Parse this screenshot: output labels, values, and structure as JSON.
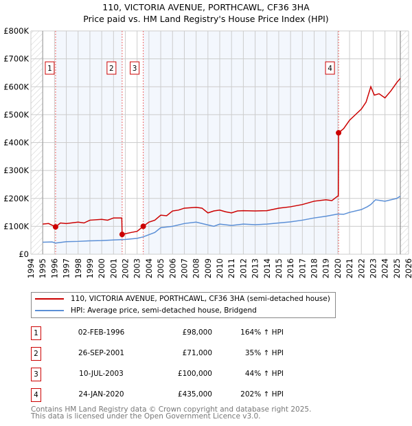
{
  "chart_data": {
    "type": "line",
    "title": "110, VICTORIA AVENUE, PORTHCAWL, CF36 3HA",
    "subtitle": "Price paid vs. HM Land Registry's House Price Index (HPI)",
    "xlim": [
      1994,
      2026
    ],
    "ylim": [
      0,
      800000
    ],
    "x_ticks": [
      "1994",
      "1995",
      "1996",
      "1997",
      "1998",
      "1999",
      "2000",
      "2001",
      "2002",
      "2003",
      "2004",
      "2005",
      "2006",
      "2007",
      "2008",
      "2009",
      "2010",
      "2011",
      "2012",
      "2013",
      "2014",
      "2015",
      "2016",
      "2017",
      "2018",
      "2019",
      "2020",
      "2021",
      "2022",
      "2023",
      "2024",
      "2025",
      "2026"
    ],
    "y_ticks": [
      {
        "value": 0,
        "label": "£0"
      },
      {
        "value": 100000,
        "label": "£100K"
      },
      {
        "value": 200000,
        "label": "£200K"
      },
      {
        "value": 300000,
        "label": "£300K"
      },
      {
        "value": 400000,
        "label": "£400K"
      },
      {
        "value": 500000,
        "label": "£500K"
      },
      {
        "value": 600000,
        "label": "£600K"
      },
      {
        "value": 700000,
        "label": "£700K"
      },
      {
        "value": 800000,
        "label": "£800K"
      }
    ],
    "grid": true,
    "data_range": [
      1995,
      2025.3
    ],
    "series": [
      {
        "name": "110, VICTORIA AVENUE, PORTHCAWL, CF36 3HA (semi-detached house)",
        "color": "#cc0000",
        "x": [
          1995,
          1995.5,
          1996.09,
          1996.5,
          1997,
          1998,
          1998.5,
          1999,
          2000,
          2000.5,
          2001,
          2001.7,
          2001.73,
          2002.5,
          2003,
          2003.52,
          2004,
          2004.5,
          2005,
          2005.5,
          2006,
          2006.5,
          2007,
          2008,
          2008.5,
          2009,
          2009.5,
          2010,
          2010.5,
          2011,
          2011.5,
          2012,
          2013,
          2014,
          2015,
          2016,
          2017,
          2018,
          2019,
          2019.5,
          2020.05,
          2020.07,
          2020.5,
          2021,
          2021.5,
          2022,
          2022.4,
          2022.8,
          2023.1,
          2023.5,
          2024,
          2024.5,
          2025,
          2025.3
        ],
        "y": [
          108000,
          110000,
          98000,
          112000,
          110000,
          115000,
          112000,
          122000,
          125000,
          122000,
          130000,
          130000,
          71000,
          78000,
          82000,
          100000,
          115000,
          122000,
          140000,
          138000,
          155000,
          158000,
          165000,
          168000,
          165000,
          148000,
          155000,
          158000,
          152000,
          148000,
          155000,
          156000,
          155000,
          156000,
          165000,
          170000,
          178000,
          190000,
          195000,
          192000,
          210000,
          435000,
          450000,
          480000,
          500000,
          520000,
          545000,
          600000,
          570000,
          575000,
          560000,
          585000,
          615000,
          630000
        ]
      },
      {
        "name": "HPI: Average price, semi-detached house, Bridgend",
        "color": "#5b8fd6",
        "x": [
          1995,
          1995.8,
          1996.1,
          1997,
          1998,
          1999,
          2000,
          2001,
          2002,
          2003,
          2003.5,
          2004,
          2004.5,
          2005,
          2006,
          2007,
          2008,
          2009,
          2009.5,
          2010,
          2011,
          2012,
          2013,
          2014,
          2015,
          2016,
          2017,
          2018,
          2019,
          2020,
          2020.5,
          2021,
          2022,
          2022.5,
          2022.8,
          2023.2,
          2024,
          2025,
          2025.3
        ],
        "y": [
          43000,
          44000,
          40000,
          45000,
          46000,
          48000,
          49000,
          51000,
          53000,
          57000,
          62000,
          70000,
          78000,
          95000,
          100000,
          110000,
          115000,
          105000,
          100000,
          108000,
          103000,
          108000,
          106000,
          108000,
          112000,
          116000,
          122000,
          130000,
          136000,
          144000,
          143000,
          150000,
          160000,
          170000,
          178000,
          195000,
          190000,
          200000,
          208000
        ]
      }
    ],
    "annotations": [
      {
        "label": "1",
        "x": 1996.09,
        "price": 98000
      },
      {
        "label": "2",
        "x": 2001.73,
        "price": 71000
      },
      {
        "label": "3",
        "x": 2003.52,
        "price": 100000
      },
      {
        "label": "4",
        "x": 2020.07,
        "price": 435000
      }
    ]
  },
  "legend": {
    "items": [
      {
        "label": "110, VICTORIA AVENUE, PORTHCAWL, CF36 3HA (semi-detached house)",
        "color": "#cc0000"
      },
      {
        "label": "HPI: Average price, semi-detached house, Bridgend",
        "color": "#5b8fd6"
      }
    ]
  },
  "sales": [
    {
      "num": "1",
      "date": "02-FEB-1996",
      "price": "£98,000",
      "hpi": "164% ↑ HPI"
    },
    {
      "num": "2",
      "date": "26-SEP-2001",
      "price": "£71,000",
      "hpi": "35% ↑ HPI"
    },
    {
      "num": "3",
      "date": "10-JUL-2003",
      "price": "£100,000",
      "hpi": "44% ↑ HPI"
    },
    {
      "num": "4",
      "date": "24-JAN-2020",
      "price": "£435,000",
      "hpi": "202% ↑ HPI"
    }
  ],
  "footer": {
    "line1": "Contains HM Land Registry data © Crown copyright and database right 2025.",
    "line2": "This data is licensed under the Open Government Licence v3.0."
  }
}
